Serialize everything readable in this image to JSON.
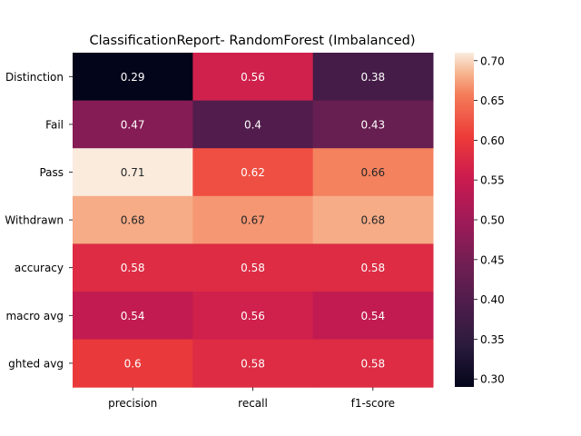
{
  "chart_data": {
    "type": "heatmap",
    "title": "ClassificationReport- RandomForest (Imbalanced)",
    "xlabel": "",
    "ylabel": "",
    "columns": [
      "precision",
      "recall",
      "f1-score"
    ],
    "rows": [
      "Distinction",
      "Fail",
      "Pass",
      "Withdrawn",
      "accuracy",
      "macro avg",
      "weighted avg"
    ],
    "row_tick_labels": [
      "Distinction",
      "Fail",
      "Pass",
      "Withdrawn",
      "accuracy",
      "macro avg",
      "ghted avg"
    ],
    "values": [
      [
        0.29,
        0.56,
        0.38
      ],
      [
        0.47,
        0.4,
        0.43
      ],
      [
        0.71,
        0.62,
        0.66
      ],
      [
        0.68,
        0.67,
        0.68
      ],
      [
        0.58,
        0.58,
        0.58
      ],
      [
        0.54,
        0.56,
        0.54
      ],
      [
        0.6,
        0.58,
        0.58
      ]
    ],
    "colormap": "rocket",
    "color_range": [
      0.29,
      0.71
    ],
    "colorbar_ticks": [
      "0.30",
      "0.35",
      "0.40",
      "0.45",
      "0.50",
      "0.55",
      "0.60",
      "0.65",
      "0.70"
    ],
    "grid": false,
    "legend": "colorbar-right"
  }
}
